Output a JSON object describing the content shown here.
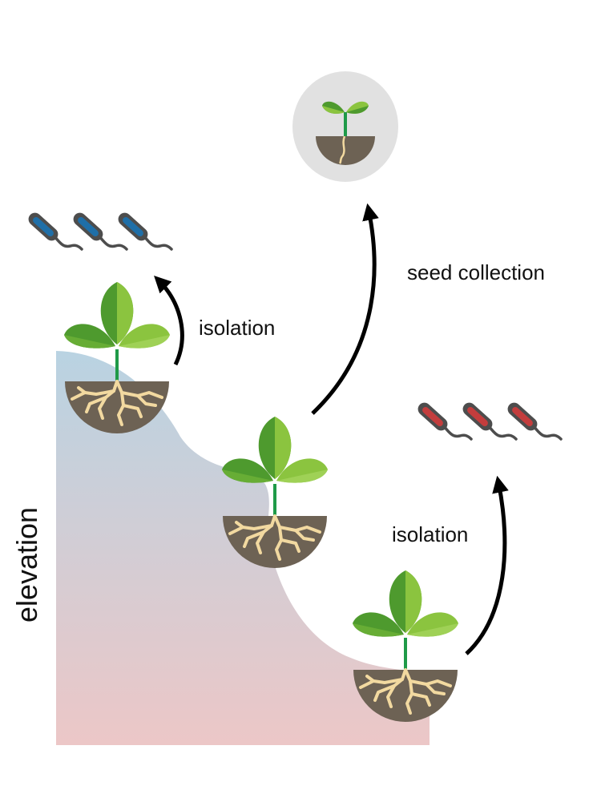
{
  "labels": {
    "elevation": "elevation",
    "isolation_top": "isolation",
    "seed_collection": "seed collection",
    "isolation_bottom": "isolation"
  },
  "colors": {
    "slope_top": "#b9d3e2",
    "slope_bottom": "#ecc7c7",
    "leaf_dark": "#4e9a2e",
    "leaf_light": "#8bc43f",
    "stem": "#1f9a48",
    "soil": "#6d6254",
    "root": "#f2d9a0",
    "bacteria_high": "#1f6fa8",
    "bacteria_low": "#c33d3d",
    "bacteria_outline": "#4d4d4d",
    "seedling_bg": "#e1e1e1",
    "arrow": "#000000"
  },
  "icons": [
    "plant-icon",
    "bacterium-icon",
    "seedling-icon",
    "arrow-icon"
  ]
}
